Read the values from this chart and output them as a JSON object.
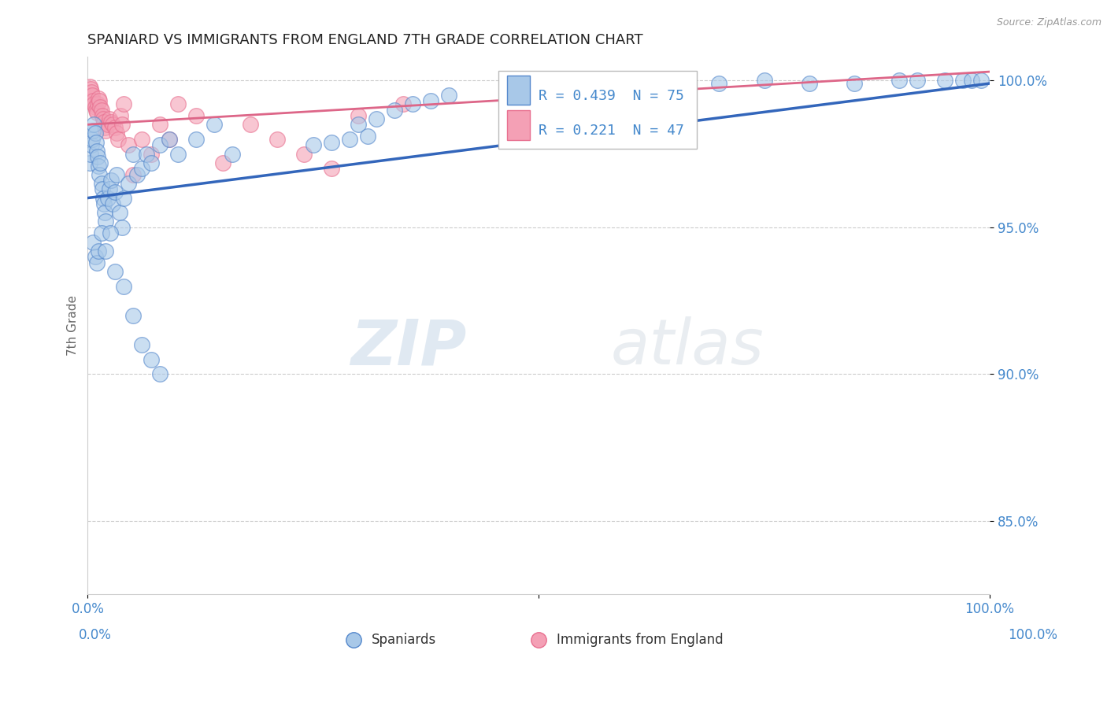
{
  "title": "SPANIARD VS IMMIGRANTS FROM ENGLAND 7TH GRADE CORRELATION CHART",
  "source": "Source: ZipAtlas.com",
  "xlabel_spaniards": "Spaniards",
  "xlabel_england": "Immigrants from England",
  "ylabel": "7th Grade",
  "xlim": [
    0.0,
    1.0
  ],
  "ylim": [
    0.825,
    1.008
  ],
  "yticks": [
    0.85,
    0.9,
    0.95,
    1.0
  ],
  "ytick_labels": [
    "85.0%",
    "90.0%",
    "95.0%",
    "100.0%"
  ],
  "blue_color": "#a8c8e8",
  "pink_color": "#f4a0b5",
  "blue_edge_color": "#5588cc",
  "pink_edge_color": "#e87090",
  "blue_line_color": "#3366bb",
  "pink_line_color": "#dd6688",
  "legend_R_blue": "R = 0.439",
  "legend_N_blue": "N = 75",
  "legend_R_pink": "R = 0.221",
  "legend_N_pink": "N = 47",
  "blue_scatter_x": [
    0.002,
    0.003,
    0.004,
    0.005,
    0.006,
    0.007,
    0.008,
    0.009,
    0.01,
    0.011,
    0.012,
    0.013,
    0.014,
    0.015,
    0.016,
    0.017,
    0.018,
    0.019,
    0.02,
    0.022,
    0.024,
    0.026,
    0.028,
    0.03,
    0.032,
    0.035,
    0.038,
    0.04,
    0.045,
    0.05,
    0.055,
    0.06,
    0.065,
    0.07,
    0.08,
    0.09,
    0.1,
    0.12,
    0.14,
    0.16,
    0.006,
    0.008,
    0.01,
    0.012,
    0.015,
    0.02,
    0.025,
    0.03,
    0.04,
    0.05,
    0.06,
    0.07,
    0.08,
    0.3,
    0.32,
    0.34,
    0.36,
    0.38,
    0.4,
    0.5,
    0.6,
    0.7,
    0.75,
    0.8,
    0.85,
    0.9,
    0.92,
    0.95,
    0.97,
    0.98,
    0.99,
    0.25,
    0.27,
    0.29,
    0.31
  ],
  "blue_scatter_y": [
    0.972,
    0.975,
    0.978,
    0.98,
    0.983,
    0.985,
    0.982,
    0.979,
    0.976,
    0.974,
    0.971,
    0.968,
    0.972,
    0.965,
    0.963,
    0.96,
    0.958,
    0.955,
    0.952,
    0.96,
    0.963,
    0.966,
    0.958,
    0.962,
    0.968,
    0.955,
    0.95,
    0.96,
    0.965,
    0.975,
    0.968,
    0.97,
    0.975,
    0.972,
    0.978,
    0.98,
    0.975,
    0.98,
    0.985,
    0.975,
    0.945,
    0.94,
    0.938,
    0.942,
    0.948,
    0.942,
    0.948,
    0.935,
    0.93,
    0.92,
    0.91,
    0.905,
    0.9,
    0.985,
    0.987,
    0.99,
    0.992,
    0.993,
    0.995,
    0.995,
    0.998,
    0.999,
    1.0,
    0.999,
    0.999,
    1.0,
    1.0,
    1.0,
    1.0,
    1.0,
    1.0,
    0.978,
    0.979,
    0.98,
    0.981
  ],
  "pink_scatter_x": [
    0.002,
    0.003,
    0.004,
    0.005,
    0.006,
    0.007,
    0.008,
    0.009,
    0.01,
    0.011,
    0.012,
    0.013,
    0.014,
    0.015,
    0.016,
    0.017,
    0.018,
    0.019,
    0.02,
    0.022,
    0.024,
    0.026,
    0.028,
    0.03,
    0.032,
    0.034,
    0.036,
    0.038,
    0.04,
    0.045,
    0.05,
    0.06,
    0.07,
    0.08,
    0.09,
    0.1,
    0.12,
    0.15,
    0.18,
    0.21,
    0.24,
    0.27,
    0.3,
    0.35,
    0.5,
    0.55,
    0.6
  ],
  "pink_scatter_y": [
    0.998,
    0.997,
    0.996,
    0.995,
    0.993,
    0.992,
    0.991,
    0.99,
    0.989,
    0.992,
    0.994,
    0.993,
    0.991,
    0.99,
    0.988,
    0.987,
    0.986,
    0.984,
    0.983,
    0.985,
    0.987,
    0.986,
    0.985,
    0.984,
    0.982,
    0.98,
    0.988,
    0.985,
    0.992,
    0.978,
    0.968,
    0.98,
    0.975,
    0.985,
    0.98,
    0.992,
    0.988,
    0.972,
    0.985,
    0.98,
    0.975,
    0.97,
    0.988,
    0.992,
    0.995,
    0.996,
    0.997
  ],
  "blue_line_x": [
    0.0,
    1.0
  ],
  "blue_line_y": [
    0.96,
    0.999
  ],
  "pink_line_x": [
    0.0,
    1.0
  ],
  "pink_line_y": [
    0.985,
    1.003
  ],
  "watermark_zip": "ZIP",
  "watermark_atlas": "atlas",
  "grid_color": "#cccccc",
  "title_fontsize": 13,
  "axis_label_color": "#666666",
  "tick_color": "#4488cc",
  "source_color": "#999999",
  "marker_size": 200
}
